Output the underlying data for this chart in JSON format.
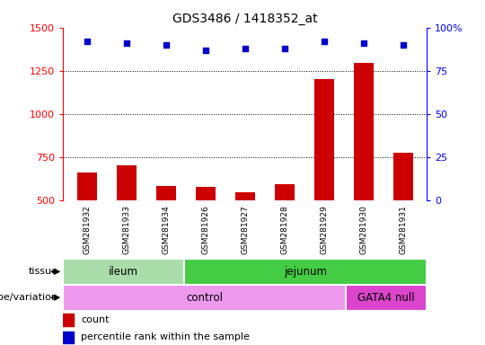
{
  "title": "GDS3486 / 1418352_at",
  "samples": [
    "GSM281932",
    "GSM281933",
    "GSM281934",
    "GSM281926",
    "GSM281927",
    "GSM281928",
    "GSM281929",
    "GSM281930",
    "GSM281931"
  ],
  "counts": [
    660,
    700,
    580,
    575,
    545,
    590,
    1200,
    1295,
    775
  ],
  "percentile_ranks": [
    92,
    91,
    90,
    87,
    88,
    88,
    92,
    91,
    90
  ],
  "ylim_left": [
    500,
    1500
  ],
  "ylim_right": [
    0,
    100
  ],
  "yticks_left": [
    500,
    750,
    1000,
    1250,
    1500
  ],
  "yticks_right": [
    0,
    25,
    50,
    75,
    100
  ],
  "bar_color": "#cc0000",
  "dot_color": "#0000cc",
  "tick_bg": "#cccccc",
  "tissue_groups": [
    {
      "label": "ileum",
      "start": 0,
      "end": 3,
      "color": "#aaddaa"
    },
    {
      "label": "jejunum",
      "start": 3,
      "end": 9,
      "color": "#44cc44"
    }
  ],
  "genotype_groups": [
    {
      "label": "control",
      "start": 0,
      "end": 7,
      "color": "#ee99ee"
    },
    {
      "label": "GATA4 null",
      "start": 7,
      "end": 9,
      "color": "#dd44cc"
    }
  ],
  "tissue_label": "tissue",
  "genotype_label": "genotype/variation",
  "legend_count": "count",
  "legend_percentile": "percentile rank within the sample"
}
